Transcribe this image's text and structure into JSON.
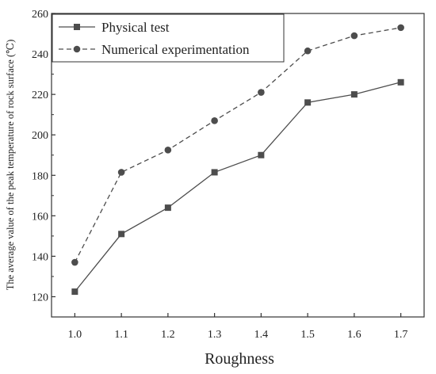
{
  "chart_data": {
    "type": "line",
    "title": "",
    "xlabel": "Roughness",
    "ylabel": "The average value of the peak temperature of rock surface (℃)",
    "x": [
      1.0,
      1.1,
      1.2,
      1.3,
      1.4,
      1.5,
      1.6,
      1.7
    ],
    "x_tick_labels": [
      "1.0",
      "1.1",
      "1.2",
      "1.3",
      "1.4",
      "1.5",
      "1.6",
      "1.7"
    ],
    "xlim": [
      0.95,
      1.75
    ],
    "ylim": [
      110,
      260
    ],
    "y_ticks": [
      120,
      140,
      160,
      180,
      200,
      220,
      240,
      260
    ],
    "y_tick_labels": [
      "120",
      "140",
      "160",
      "180",
      "200",
      "220",
      "240",
      "260"
    ],
    "grid": false,
    "legend_position": "top-left",
    "series": [
      {
        "name": "Physical test",
        "values": [
          122.5,
          151,
          164,
          181.5,
          190,
          216,
          220,
          226
        ],
        "marker": "square",
        "line_style": "solid",
        "color": "#4d4d4d"
      },
      {
        "name": "Numerical experimentation",
        "values": [
          137,
          181.5,
          192.5,
          207,
          221,
          241.5,
          249,
          253
        ],
        "marker": "circle",
        "line_style": "dashed",
        "color": "#4d4d4d"
      }
    ]
  }
}
